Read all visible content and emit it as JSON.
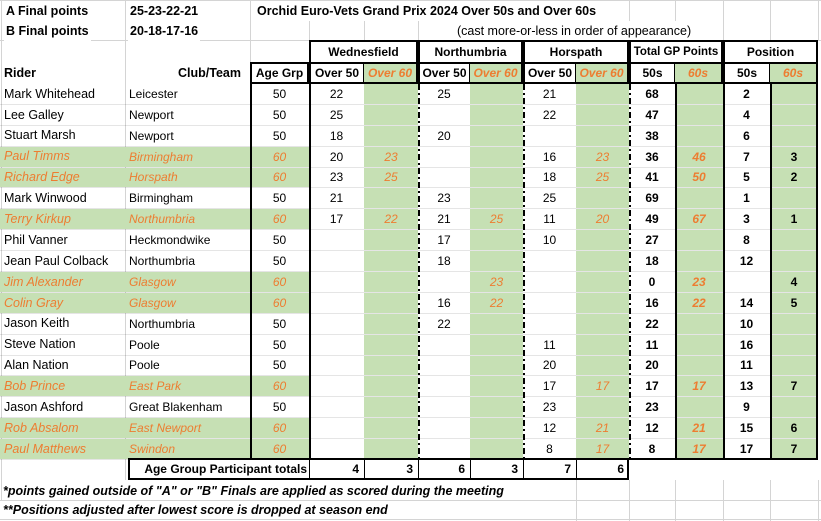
{
  "meta": {
    "a_final_label": "A Final points",
    "a_final_points": "25-23-22-21",
    "b_final_label": "B Final points",
    "b_final_points": "20-18-17-16",
    "title": "Orchid Euro-Vets Grand Prix 2024 Over 50s and Over 60s",
    "cast_note": "(cast more-or-less in order of appearance)"
  },
  "colors": {
    "green_fill": "#c6e0b4",
    "orange_text": "#ed7d31",
    "gridline": "#d4d4d4"
  },
  "columns": {
    "rider": "Rider",
    "club": "Club/Team",
    "age": "Age Grp",
    "over50": "Over 50",
    "over60": "Over 60",
    "t50": "50s",
    "t60": "60s"
  },
  "venues": [
    "Wednesfield",
    "Northumbria",
    "Horspath"
  ],
  "total_header": "Total GP Points",
  "position_header": "Position",
  "riders": [
    {
      "name": "Mark Whitehead",
      "club": "Leicester",
      "age": "50",
      "w50": "22",
      "w60": "",
      "n50": "25",
      "n60": "",
      "h50": "21",
      "h60": "",
      "t50": "68",
      "t60": "",
      "p50": "2",
      "p60": ""
    },
    {
      "name": "Lee Galley",
      "club": "Newport",
      "age": "50",
      "w50": "25",
      "w60": "",
      "n50": "",
      "n60": "",
      "h50": "22",
      "h60": "",
      "t50": "47",
      "t60": "",
      "p50": "4",
      "p60": ""
    },
    {
      "name": "Stuart Marsh",
      "club": "Newport",
      "age": "50",
      "w50": "18",
      "w60": "",
      "n50": "20",
      "n60": "",
      "h50": "",
      "h60": "",
      "t50": "38",
      "t60": "",
      "p50": "6",
      "p60": ""
    },
    {
      "name": "Paul Timms",
      "club": "Birmingham",
      "age": "60",
      "w50": "20",
      "w60": "23",
      "n50": "",
      "n60": "",
      "h50": "16",
      "h60": "23",
      "t50": "36",
      "t60": "46",
      "p50": "7",
      "p60": "3"
    },
    {
      "name": "Richard Edge",
      "club": "Horspath",
      "age": "60",
      "w50": "23",
      "w60": "25",
      "n50": "",
      "n60": "",
      "h50": "18",
      "h60": "25",
      "t50": "41",
      "t60": "50",
      "p50": "5",
      "p60": "2"
    },
    {
      "name": "Mark Winwood",
      "club": "Birmingham",
      "age": "50",
      "w50": "21",
      "w60": "",
      "n50": "23",
      "n60": "",
      "h50": "25",
      "h60": "",
      "t50": "69",
      "t60": "",
      "p50": "1",
      "p60": ""
    },
    {
      "name": "Terry Kirkup",
      "club": "Northumbria",
      "age": "60",
      "w50": "17",
      "w60": "22",
      "n50": "21",
      "n60": "25",
      "h50": "11",
      "h60": "20",
      "t50": "49",
      "t60": "67",
      "p50": "3",
      "p60": "1"
    },
    {
      "name": "Phil Vanner",
      "club": "Heckmondwike",
      "age": "50",
      "w50": "",
      "w60": "",
      "n50": "17",
      "n60": "",
      "h50": "10",
      "h60": "",
      "t50": "27",
      "t60": "",
      "p50": "8",
      "p60": ""
    },
    {
      "name": "Jean Paul Colback",
      "club": "Northumbria",
      "age": "50",
      "w50": "",
      "w60": "",
      "n50": "18",
      "n60": "",
      "h50": "",
      "h60": "",
      "t50": "18",
      "t60": "",
      "p50": "12",
      "p60": ""
    },
    {
      "name": "Jim Alexander",
      "club": "Glasgow",
      "age": "60",
      "w50": "",
      "w60": "",
      "n50": "",
      "n60": "23",
      "h50": "",
      "h60": "",
      "t50": "0",
      "t60": "23",
      "p50": "",
      "p60": "4"
    },
    {
      "name": "Colin Gray",
      "club": "Glasgow",
      "age": "60",
      "w50": "",
      "w60": "",
      "n50": "16",
      "n60": "22",
      "h50": "",
      "h60": "",
      "t50": "16",
      "t60": "22",
      "p50": "14",
      "p60": "5"
    },
    {
      "name": "Jason Keith",
      "club": "Northumbria",
      "age": "50",
      "w50": "",
      "w60": "",
      "n50": "22",
      "n60": "",
      "h50": "",
      "h60": "",
      "t50": "22",
      "t60": "",
      "p50": "10",
      "p60": ""
    },
    {
      "name": "Steve Nation",
      "club": "Poole",
      "age": "50",
      "w50": "",
      "w60": "",
      "n50": "",
      "n60": "",
      "h50": "11",
      "h60": "",
      "t50": "11",
      "t60": "",
      "p50": "16",
      "p60": ""
    },
    {
      "name": "Alan Nation",
      "club": "Poole",
      "age": "50",
      "w50": "",
      "w60": "",
      "n50": "",
      "n60": "",
      "h50": "20",
      "h60": "",
      "t50": "20",
      "t60": "",
      "p50": "11",
      "p60": ""
    },
    {
      "name": "Bob Prince",
      "club": "East Park",
      "age": "60",
      "w50": "",
      "w60": "",
      "n50": "",
      "n60": "",
      "h50": "17",
      "h60": "17",
      "t50": "17",
      "t60": "17",
      "p50": "13",
      "p60": "7"
    },
    {
      "name": "Jason Ashford",
      "club": "Great Blakenham",
      "age": "50",
      "w50": "",
      "w60": "",
      "n50": "",
      "n60": "",
      "h50": "23",
      "h60": "",
      "t50": "23",
      "t60": "",
      "p50": "9",
      "p60": ""
    },
    {
      "name": "Rob Absalom",
      "club": "East Newport",
      "age": "60",
      "w50": "",
      "w60": "",
      "n50": "",
      "n60": "",
      "h50": "12",
      "h60": "21",
      "t50": "12",
      "t60": "21",
      "p50": "15",
      "p60": "6"
    },
    {
      "name": "Paul Matthews",
      "club": "Swindon",
      "age": "60",
      "w50": "",
      "w60": "",
      "n50": "",
      "n60": "",
      "h50": "8",
      "h60": "17",
      "t50": "8",
      "t60": "17",
      "p50": "17",
      "p60": "7"
    }
  ],
  "totals": {
    "label": "Age Group Participant totals",
    "values": [
      "4",
      "3",
      "6",
      "3",
      "7",
      "6"
    ]
  },
  "footnotes": [
    "*points gained outside of \"A\" or \"B\" Finals are applied as scored during the meeting",
    "**Positions adjusted after lowest score is dropped at season end"
  ]
}
